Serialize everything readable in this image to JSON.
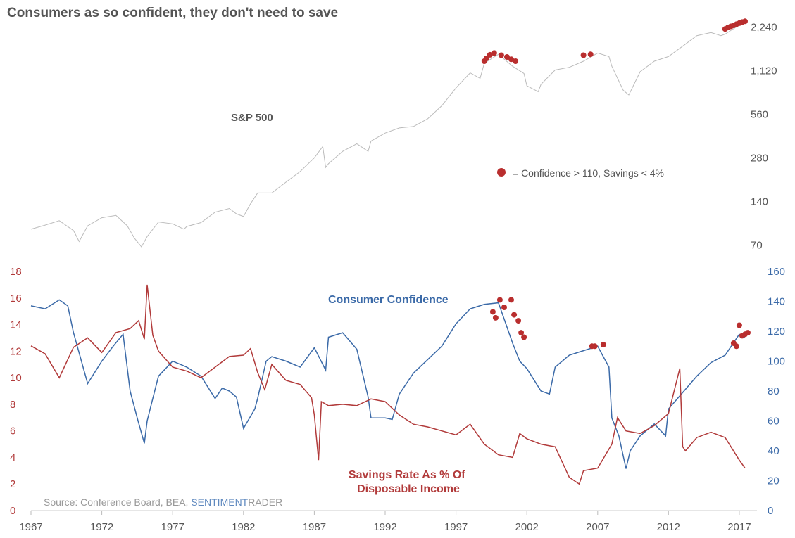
{
  "chart_data": [
    {
      "type": "line",
      "title": "Consumers as so confident, they don't need to save",
      "series_label": "S&P 500",
      "scale": "log",
      "xlim": [
        1967,
        2017.5
      ],
      "ylim": [
        65,
        2600
      ],
      "yticks": [
        70,
        140,
        280,
        560,
        1120,
        2240
      ],
      "ytick_labels": [
        "70",
        "140",
        "280",
        "560",
        "1,120",
        "2,240"
      ],
      "line_color": "#bbbbbb",
      "marker_color": "#b92e2e",
      "legend_label": "= Confidence > 110, Savings < 4%",
      "x": [
        1967,
        1968,
        1969,
        1970,
        1970.4,
        1971,
        1972,
        1973,
        1973.8,
        1974.3,
        1974.8,
        1975.2,
        1976,
        1977,
        1977.8,
        1978,
        1979,
        1980,
        1981,
        1981.5,
        1982,
        1982.5,
        1983,
        1984,
        1985,
        1986,
        1987,
        1987.6,
        1987.8,
        1988,
        1989,
        1990,
        1990.8,
        1991,
        1992,
        1993,
        1994,
        1995,
        1996,
        1997,
        1998,
        1998.7,
        1999,
        2000,
        2001,
        2001.8,
        2002,
        2002.8,
        2003,
        2004,
        2005,
        2006,
        2007,
        2007.8,
        2008,
        2008.8,
        2009.2,
        2010,
        2011,
        2012,
        2013,
        2014,
        2015,
        2015.7,
        2016,
        2016.5,
        2017,
        2017.4
      ],
      "values": [
        90,
        96,
        103,
        88,
        74,
        95,
        108,
        112,
        95,
        78,
        68,
        80,
        101,
        98,
        90,
        94,
        100,
        118,
        125,
        115,
        110,
        135,
        160,
        160,
        190,
        225,
        280,
        335,
        240,
        255,
        310,
        350,
        310,
        365,
        415,
        450,
        460,
        520,
        640,
        850,
        1080,
        990,
        1260,
        1450,
        1200,
        1070,
        880,
        800,
        900,
        1130,
        1180,
        1300,
        1480,
        1400,
        1200,
        820,
        760,
        1100,
        1300,
        1400,
        1650,
        1950,
        2050,
        1950,
        2000,
        2150,
        2300,
        2370
      ],
      "markers_x": [
        1999.0,
        1999.15,
        1999.4,
        1999.7,
        2000.2,
        2000.6,
        2000.9,
        2001.2,
        2006.0,
        2006.5,
        2016.0,
        2016.2,
        2016.4,
        2016.6,
        2016.8,
        2017.0,
        2017.2,
        2017.4
      ],
      "markers_y": [
        1300,
        1360,
        1440,
        1480,
        1430,
        1390,
        1340,
        1300,
        1430,
        1450,
        2170,
        2220,
        2260,
        2300,
        2340,
        2380,
        2420,
        2450
      ]
    },
    {
      "type": "line",
      "xlabel": "",
      "xlim": [
        1967,
        2017.5
      ],
      "xticks": [
        1967,
        1972,
        1977,
        1982,
        1987,
        1992,
        1997,
        2002,
        2007,
        2012,
        2017
      ],
      "series": [
        {
          "name": "Savings Rate As % Of Disposable Income",
          "axis": "left",
          "color": "#b13a3a",
          "ylim": [
            0,
            18
          ],
          "yticks": [
            0,
            2,
            4,
            6,
            8,
            10,
            12,
            14,
            16,
            18
          ],
          "x": [
            1967,
            1968,
            1969,
            1970,
            1971,
            1972,
            1973,
            1974,
            1974.6,
            1975,
            1975.2,
            1975.6,
            1976,
            1977,
            1978,
            1979,
            1980,
            1981,
            1982,
            1982.5,
            1983,
            1983.5,
            1984,
            1985,
            1986,
            1986.8,
            1987,
            1987.3,
            1987.5,
            1988,
            1989,
            1990,
            1991,
            1992,
            1993,
            1994,
            1995,
            1996,
            1997,
            1998,
            1999,
            2000,
            2001,
            2001.5,
            2002,
            2003,
            2004,
            2005,
            2005.7,
            2006,
            2007,
            2008,
            2008.4,
            2009,
            2010,
            2011,
            2012,
            2012.8,
            2013,
            2013.2,
            2014,
            2015,
            2016,
            2017,
            2017.4
          ],
          "values": [
            12.4,
            11.8,
            10.0,
            12.3,
            13.0,
            11.9,
            13.4,
            13.7,
            14.3,
            12.9,
            17.0,
            13.2,
            12.0,
            10.8,
            10.5,
            10.0,
            10.8,
            11.6,
            11.7,
            12.2,
            10.4,
            9.1,
            11.0,
            9.8,
            9.5,
            8.5,
            7.2,
            3.8,
            8.2,
            7.9,
            8.0,
            7.9,
            8.4,
            8.2,
            7.2,
            6.5,
            6.3,
            6.0,
            5.7,
            6.5,
            5.0,
            4.2,
            4.0,
            5.8,
            5.4,
            5.0,
            4.8,
            2.5,
            2.0,
            3.0,
            3.2,
            5.0,
            7.0,
            6.0,
            5.8,
            6.4,
            7.3,
            10.7,
            4.8,
            4.5,
            5.5,
            5.9,
            5.5,
            3.8,
            3.2
          ]
        },
        {
          "name": "Consumer Confidence",
          "axis": "right",
          "color": "#3b6aa8",
          "ylim": [
            0,
            160
          ],
          "yticks": [
            0,
            20,
            40,
            60,
            80,
            100,
            120,
            140,
            160
          ],
          "x": [
            1967,
            1968,
            1969,
            1969.6,
            1970,
            1971,
            1972,
            1972.8,
            1973.5,
            1974,
            1974.5,
            1975,
            1975.2,
            1975.6,
            1976,
            1977,
            1978,
            1979,
            1980,
            1980.5,
            1981,
            1981.5,
            1982,
            1982.8,
            1983,
            1983.6,
            1984,
            1985,
            1986,
            1987,
            1987.8,
            1988,
            1989,
            1990,
            1990.8,
            1991,
            1992,
            1992.5,
            1993,
            1994,
            1995,
            1996,
            1997,
            1998,
            1999,
            2000,
            2001,
            2001.5,
            2002,
            2003,
            2003.6,
            2004,
            2005,
            2006,
            2007,
            2007.8,
            2008,
            2008.5,
            2009,
            2009.3,
            2010,
            2011,
            2011.8,
            2012,
            2013,
            2014,
            2015,
            2016,
            2016.5,
            2017,
            2017.4
          ],
          "values": [
            137,
            135,
            141,
            137,
            119,
            85,
            100,
            110,
            118,
            80,
            62,
            45,
            60,
            75,
            90,
            100,
            96,
            90,
            75,
            82,
            80,
            76,
            55,
            68,
            75,
            100,
            103,
            100,
            96,
            109,
            94,
            116,
            119,
            108,
            76,
            62,
            62,
            61,
            78,
            92,
            101,
            110,
            125,
            135,
            138,
            139,
            112,
            100,
            95,
            80,
            78,
            96,
            104,
            107,
            110,
            96,
            62,
            50,
            28,
            40,
            50,
            58,
            50,
            68,
            79,
            90,
            99,
            104,
            111,
            118,
            116
          ]
        }
      ],
      "markers_x": [
        1999.6,
        1999.8,
        2000.1,
        2000.4,
        2000.9,
        2001.1,
        2001.4,
        2001.6,
        2001.8,
        2006.6,
        2006.8,
        2007.4,
        2016.6,
        2016.8,
        2017.0,
        2017.2,
        2017.4,
        2017.6
      ],
      "markers_y": [
        133,
        129,
        141,
        136,
        141,
        131,
        127,
        119,
        116,
        110,
        110,
        111,
        112,
        110,
        124,
        117,
        118,
        119
      ],
      "source_prefix": "Source: Conference Board, BEA, ",
      "source_brand": "SENTIMENT",
      "source_suffix": "RADER",
      "source_brand_color": "#5f89bf"
    }
  ]
}
